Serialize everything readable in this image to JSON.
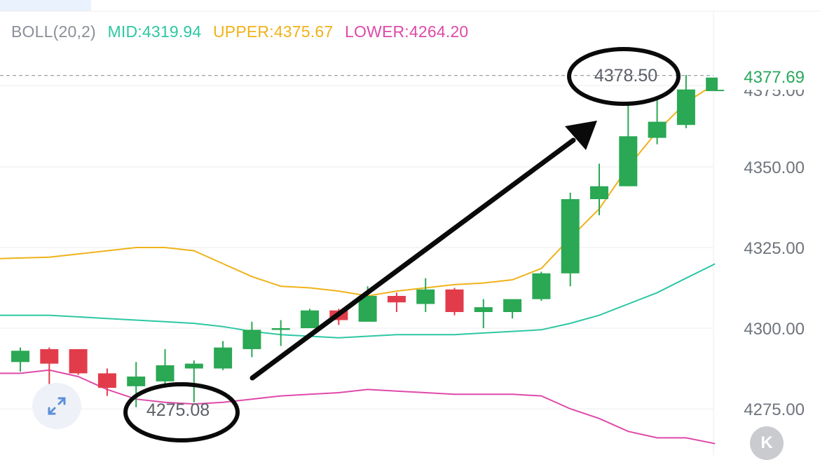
{
  "indicator": {
    "name": "BOLL(20,2)",
    "mid": "MID:4319.94",
    "upper": "UPPER:4375.67",
    "lower": "LOWER:4264.20"
  },
  "last_price": "4377.69",
  "annotations": {
    "high": "4378.50",
    "low": "4275.08"
  },
  "icons": {
    "expand": "expand-arrows-icon",
    "k": "K"
  },
  "colors": {
    "up": "#2aa854",
    "down": "#e23c4a",
    "mid": "#2ec7a2",
    "upper": "#f0b21a",
    "lower": "#de4aa9",
    "grid": "#ececec",
    "axis_text": "#6f747c",
    "last_price": "#27a85b"
  },
  "chart_data": {
    "type": "candlestick",
    "y_ticks": [
      "4350.00",
      "4325.00",
      "4300.00",
      "4275.00"
    ],
    "ylim": [
      4266,
      4384
    ],
    "last_price_value": 4377.69,
    "candles": [
      {
        "o": 4289.5,
        "h": 4294.0,
        "l": 4286.5,
        "c": 4293.0
      },
      {
        "o": 4293.5,
        "h": 4294.0,
        "l": 4282.0,
        "c": 4289.0
      },
      {
        "o": 4293.5,
        "h": 4293.5,
        "l": 4285.5,
        "c": 4286.0
      },
      {
        "o": 4286.0,
        "h": 4287.5,
        "l": 4279.0,
        "c": 4281.5
      },
      {
        "o": 4282.0,
        "h": 4289.5,
        "l": 4275.5,
        "c": 4285.0
      },
      {
        "o": 4283.5,
        "h": 4293.5,
        "l": 4281.5,
        "c": 4288.5
      },
      {
        "o": 4287.5,
        "h": 4290.0,
        "l": 4277.0,
        "c": 4289.0
      },
      {
        "o": 4287.5,
        "h": 4296.0,
        "l": 4287.0,
        "c": 4294.0
      },
      {
        "o": 4293.5,
        "h": 4302.0,
        "l": 4291.0,
        "c": 4299.5
      },
      {
        "o": 4300.0,
        "h": 4302.5,
        "l": 4294.5,
        "c": 4300.0
      },
      {
        "o": 4300.0,
        "h": 4306.0,
        "l": 4300.0,
        "c": 4305.5
      },
      {
        "o": 4305.5,
        "h": 4306.0,
        "l": 4301.0,
        "c": 4302.5
      },
      {
        "o": 4302.0,
        "h": 4313.0,
        "l": 4302.0,
        "c": 4310.0
      },
      {
        "o": 4310.0,
        "h": 4311.0,
        "l": 4305.0,
        "c": 4308.0
      },
      {
        "o": 4307.5,
        "h": 4315.5,
        "l": 4305.0,
        "c": 4312.0
      },
      {
        "o": 4312.0,
        "h": 4312.5,
        "l": 4304.0,
        "c": 4305.0
      },
      {
        "o": 4305.0,
        "h": 4309.0,
        "l": 4300.0,
        "c": 4306.5
      },
      {
        "o": 4305.0,
        "h": 4309.0,
        "l": 4303.0,
        "c": 4309.0
      },
      {
        "o": 4309.0,
        "h": 4317.5,
        "l": 4308.5,
        "c": 4317.0
      },
      {
        "o": 4317.0,
        "h": 4342.0,
        "l": 4313.0,
        "c": 4340.0
      },
      {
        "o": 4340.0,
        "h": 4351.0,
        "l": 4335.0,
        "c": 4344.0
      },
      {
        "o": 4344.0,
        "h": 4370.0,
        "l": 4344.0,
        "c": 4359.5
      },
      {
        "o": 4359.0,
        "h": 4372.0,
        "l": 4357.0,
        "c": 4364.0
      },
      {
        "o": 4363.0,
        "h": 4378.5,
        "l": 4362.0,
        "c": 4374.0
      },
      {
        "o": 4373.5,
        "h": 4377.69,
        "l": 4373.5,
        "c": 4377.69
      }
    ],
    "boll_upper": [
      null,
      4322.0,
      4323.0,
      4324.0,
      4325.0,
      4325.0,
      4324.0,
      4320.0,
      4316.0,
      4313.0,
      4312.5,
      4311.5,
      4310.0,
      4311.5,
      4312.5,
      4313.5,
      4314.0,
      4315.0,
      4318.5,
      4328.0,
      4337.0,
      4350.0,
      4361.0,
      4370.0,
      4375.67
    ],
    "boll_mid": [
      4304.0,
      4304.0,
      4303.5,
      4303.0,
      4302.5,
      4302.0,
      4301.5,
      4300.5,
      4299.0,
      4298.0,
      4297.5,
      4297.0,
      4297.5,
      4298.0,
      4298.0,
      4298.0,
      4298.5,
      4299.0,
      4299.5,
      4301.5,
      4304.0,
      4307.5,
      4311.0,
      4315.5,
      4319.94
    ],
    "boll_lower": [
      4286.0,
      4287.0,
      4285.0,
      4281.0,
      4278.0,
      4277.0,
      4276.5,
      4277.0,
      4278.0,
      4279.0,
      4279.5,
      4280.0,
      4281.0,
      4280.5,
      4280.0,
      4279.5,
      4279.5,
      4279.5,
      4279.0,
      4275.0,
      4272.0,
      4268.0,
      4266.0,
      4266.0,
      4264.2
    ],
    "grid": true
  }
}
